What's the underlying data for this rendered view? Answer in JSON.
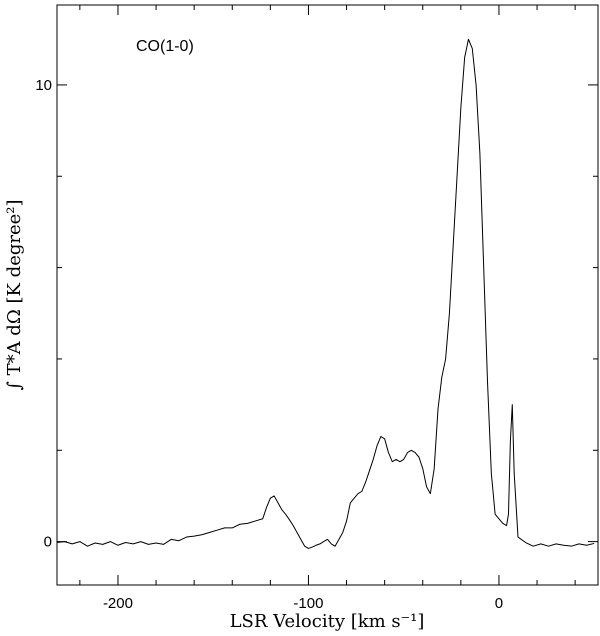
{
  "chart_data": {
    "type": "line",
    "annotation": "CO(1-0)",
    "xlabel": "LSR Velocity [km s⁻¹]",
    "ylabel": "∫ T*A dΩ [K degree²]",
    "xlim": [
      -232,
      52
    ],
    "ylim": [
      -0.95,
      11.75
    ],
    "x_ticks": [
      -200,
      -100,
      0
    ],
    "x_tick_labels": [
      "-200",
      "-100",
      "0"
    ],
    "y_ticks": [
      0,
      10
    ],
    "y_tick_labels": [
      "0",
      "10"
    ],
    "grid": false,
    "series": [
      {
        "x": [
          -232,
          -228,
          -224,
          -220,
          -216,
          -212,
          -208,
          -204,
          -200,
          -196,
          -192,
          -188,
          -184,
          -180,
          -176,
          -172,
          -168,
          -164,
          -160,
          -156,
          -152,
          -148,
          -144,
          -140,
          -136,
          -132,
          -128,
          -124,
          -122,
          -120,
          -118,
          -116,
          -114,
          -112,
          -110,
          -108,
          -106,
          -104,
          -102,
          -100,
          -98,
          -96,
          -94,
          -92,
          -90,
          -88,
          -86,
          -84,
          -82,
          -80,
          -78,
          -76,
          -74,
          -72,
          -70,
          -68,
          -66,
          -64,
          -62,
          -60,
          -58,
          -56,
          -54,
          -52,
          -50,
          -48,
          -46,
          -44,
          -42,
          -40,
          -38,
          -36,
          -34,
          -32,
          -30,
          -28,
          -26,
          -24,
          -22,
          -20,
          -18,
          -16,
          -14,
          -12,
          -10,
          -8,
          -6,
          -4,
          -2,
          0,
          2,
          4,
          5,
          6,
          7,
          8,
          10,
          14,
          18,
          22,
          26,
          30,
          34,
          38,
          42,
          46,
          50
        ],
        "y": [
          -0.02,
          0.0,
          -0.05,
          0.0,
          -0.1,
          -0.03,
          -0.06,
          0.0,
          -0.08,
          -0.02,
          -0.05,
          0.0,
          -0.06,
          -0.03,
          -0.06,
          0.05,
          0.02,
          0.1,
          0.12,
          0.15,
          0.2,
          0.25,
          0.3,
          0.3,
          0.38,
          0.4,
          0.45,
          0.5,
          0.75,
          0.95,
          1.0,
          0.85,
          0.7,
          0.6,
          0.48,
          0.35,
          0.2,
          0.05,
          -0.1,
          -0.15,
          -0.12,
          -0.08,
          -0.05,
          0.0,
          0.05,
          -0.05,
          -0.1,
          0.05,
          0.2,
          0.45,
          0.85,
          0.95,
          1.05,
          1.1,
          1.3,
          1.55,
          1.8,
          2.1,
          2.3,
          2.25,
          1.95,
          1.75,
          1.8,
          1.75,
          1.8,
          1.95,
          2.0,
          1.95,
          1.85,
          1.6,
          1.2,
          1.05,
          1.6,
          2.9,
          3.6,
          4.0,
          5.0,
          6.5,
          8.0,
          9.5,
          10.6,
          11.0,
          10.8,
          10.0,
          8.5,
          6.0,
          3.5,
          1.5,
          0.6,
          0.5,
          0.4,
          0.35,
          0.6,
          2.2,
          3.0,
          1.5,
          0.1,
          -0.02,
          -0.1,
          -0.05,
          -0.1,
          -0.05,
          -0.08,
          -0.1,
          -0.05,
          -0.08,
          -0.04
        ]
      }
    ]
  }
}
